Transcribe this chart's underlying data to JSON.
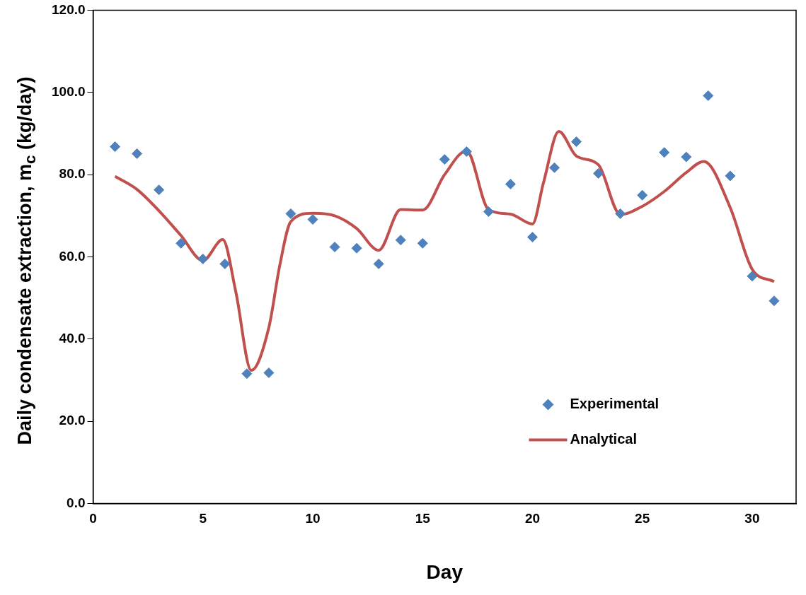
{
  "chart_data": {
    "type": "scatter",
    "xlabel": "Day",
    "ylabel": "Daily condensate extraction, m$_{c}$ (kg/day)",
    "xlim": [
      0,
      32
    ],
    "xticks": [
      0,
      5,
      10,
      15,
      20,
      25,
      30
    ],
    "ylim": [
      0,
      120
    ],
    "yticks": [
      {
        "value": 0,
        "label": "0.0"
      },
      {
        "value": 20,
        "label": "20.0"
      },
      {
        "value": 40,
        "label": "40.0"
      },
      {
        "value": 60,
        "label": "60.0"
      },
      {
        "value": 80,
        "label": "80.0"
      },
      {
        "value": 100,
        "label": "100.0"
      },
      {
        "value": 120,
        "label": "120.0"
      }
    ],
    "grid": false,
    "legend": "bottom right",
    "series": [
      {
        "name": "Experimental",
        "type": "scatter",
        "marker": "diamond",
        "color": "#4f81bd",
        "x": [
          1,
          2,
          3,
          4,
          5,
          6,
          7,
          8,
          9,
          10,
          11,
          12,
          13,
          14,
          15,
          16,
          17,
          18,
          19,
          20,
          21,
          22,
          23,
          24,
          25,
          26,
          27,
          28,
          29,
          30,
          31
        ],
        "values": [
          86.8,
          85.1,
          76.3,
          63.3,
          59.5,
          58.3,
          31.6,
          31.8,
          70.5,
          69.1,
          62.4,
          62.1,
          58.3,
          64.1,
          63.3,
          83.7,
          85.6,
          71.0,
          77.7,
          64.8,
          81.7,
          88.0,
          80.3,
          70.5,
          75.0,
          85.4,
          84.3,
          99.2,
          79.7,
          55.3,
          49.3
        ]
      },
      {
        "name": "Analytical",
        "type": "line",
        "marker": "none",
        "line_style": "solid",
        "color": "#c0504d",
        "x": [
          1,
          2,
          3,
          4,
          5,
          5.9,
          6.5,
          7.2,
          8,
          8.5,
          9,
          10,
          11,
          12,
          13,
          14,
          15,
          16,
          17,
          18,
          19,
          20,
          20.5,
          21.2,
          22,
          23,
          24,
          25,
          26,
          27,
          27.8,
          29,
          30,
          31
        ],
        "values": [
          79.6,
          76.4,
          71.2,
          65.2,
          59.1,
          64.2,
          51.4,
          32.4,
          42.8,
          58.0,
          68.6,
          70.6,
          70.0,
          66.9,
          61.6,
          71.5,
          71.4,
          80.0,
          85.8,
          71.5,
          70.4,
          68.0,
          78.0,
          90.5,
          84.5,
          82.4,
          70.3,
          72.3,
          75.9,
          80.5,
          83.2,
          72.0,
          57.0,
          54.0
        ]
      }
    ]
  }
}
